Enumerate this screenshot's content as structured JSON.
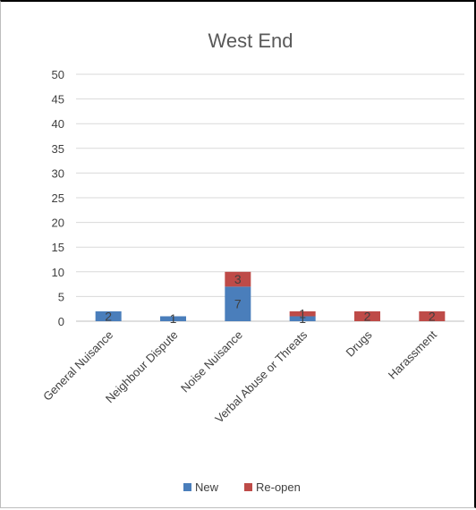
{
  "chart_data": {
    "type": "bar",
    "stacked": true,
    "title": "West End",
    "xlabel": "",
    "ylabel": "",
    "categories": [
      "General Nuisance",
      "Neighbour Dispute",
      "Noise Nuisance",
      "Verbal Abuse or Threats",
      "Drugs",
      "Harassment"
    ],
    "series": [
      {
        "name": "New",
        "color": "#4a7ebb",
        "values": [
          2,
          1,
          7,
          1,
          0,
          0
        ]
      },
      {
        "name": "Re-open",
        "color": "#be4b48",
        "values": [
          0,
          0,
          3,
          1,
          2,
          2
        ]
      }
    ],
    "ylim": [
      0,
      50
    ],
    "yticks": [
      0,
      5,
      10,
      15,
      20,
      25,
      30,
      35,
      40,
      45,
      50
    ],
    "grid": true,
    "legend_position": "bottom"
  }
}
